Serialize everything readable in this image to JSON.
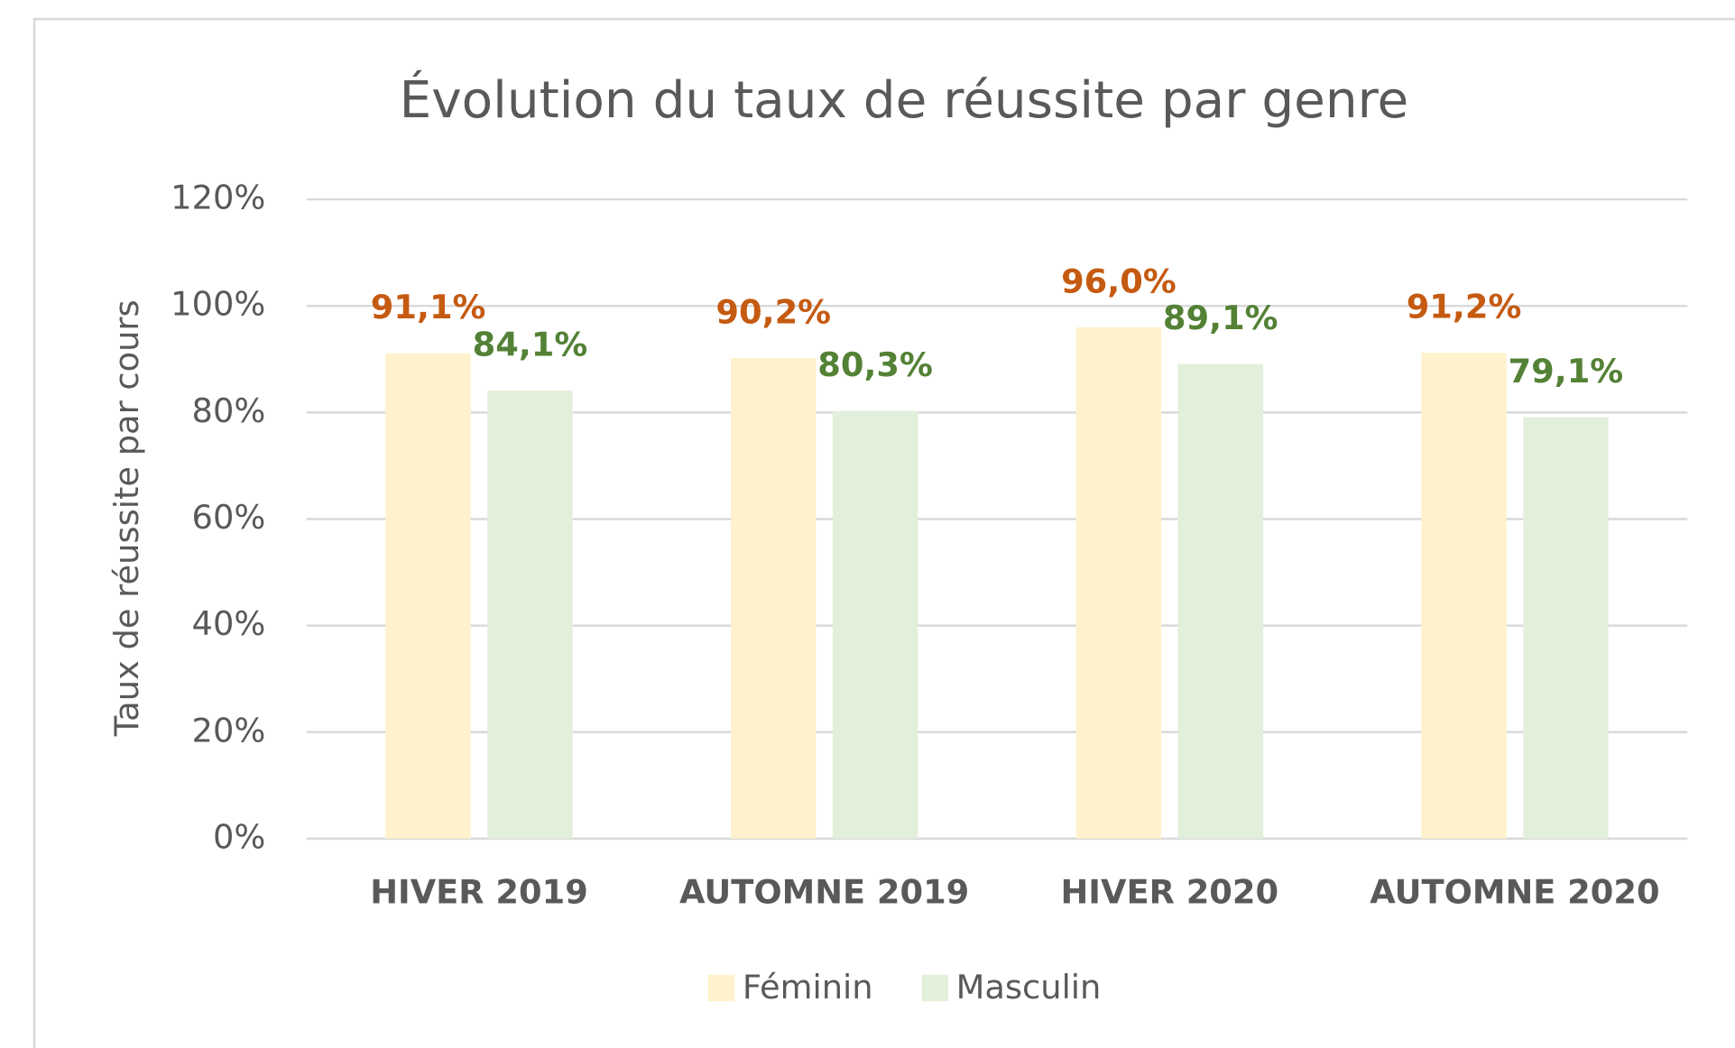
{
  "chart_data": {
    "type": "bar",
    "title": "Évolution du taux de réussite par genre",
    "ylabel": "Taux de réussite par cours",
    "categories": [
      "HIVER 2019",
      "AUTOMNE 2019",
      "HIVER 2020",
      "AUTOMNE 2020"
    ],
    "series": [
      {
        "name": "Féminin",
        "color": "#fff2cc",
        "label_color": "#c55a11",
        "values": [
          91.1,
          90.2,
          96.0,
          91.2
        ],
        "value_labels": [
          "91,1%",
          "90,2%",
          "96,0%",
          "91,2%"
        ]
      },
      {
        "name": "Masculin",
        "color": "#e2efda",
        "label_color": "#538135",
        "values": [
          84.1,
          80.3,
          89.1,
          79.1
        ],
        "value_labels": [
          "84,1%",
          "80,3%",
          "89,1%",
          "79,1%"
        ]
      }
    ],
    "ylim": [
      0,
      120
    ],
    "yticks": [
      {
        "value": 0,
        "label": "0%"
      },
      {
        "value": 20,
        "label": "20%"
      },
      {
        "value": 40,
        "label": "40%"
      },
      {
        "value": 60,
        "label": "60%"
      },
      {
        "value": 80,
        "label": "80%"
      },
      {
        "value": 100,
        "label": "100%"
      },
      {
        "value": 120,
        "label": "120%"
      }
    ],
    "grid": true,
    "legend": "bottom"
  }
}
